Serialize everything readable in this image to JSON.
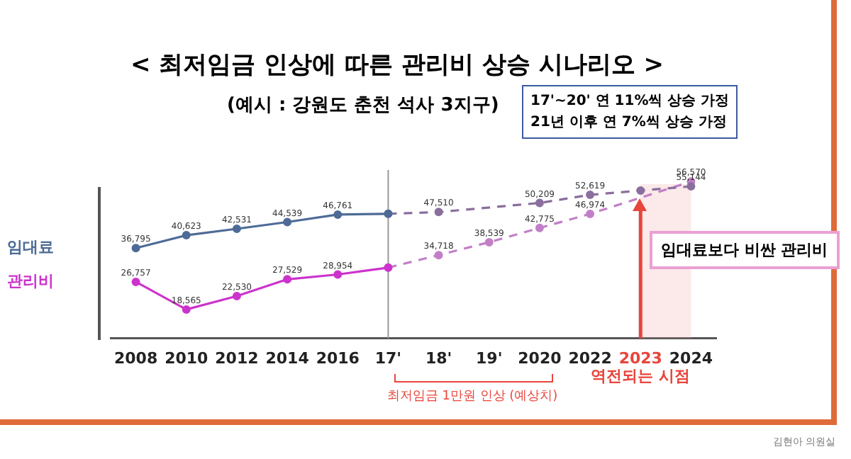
{
  "chart_data": {
    "type": "line",
    "title": "< 최저임금 인상에 따른 관리비 상승 시나리오 >",
    "subtitle": "(예시 : 강원도 춘천 석사 3지구)",
    "categories": [
      "2008",
      "2010",
      "2012",
      "2014",
      "2016",
      "17'",
      "18'",
      "19'",
      "2020",
      "2022",
      "2023",
      "2024"
    ],
    "series": [
      {
        "name": "임대료",
        "color": "#4d6b96",
        "line_style": "solid",
        "values": [
          36795,
          40623,
          42531,
          44539,
          46761,
          47000,
          null,
          null,
          null,
          null,
          null,
          null
        ],
        "value_labels": [
          "36,795",
          "40,623",
          "42,531",
          "44,539",
          "46,761",
          null,
          null,
          null,
          null,
          null,
          null,
          null
        ]
      },
      {
        "name": "관리비",
        "color": "#cc33cc",
        "line_style": "solid",
        "values": [
          26757,
          18565,
          22530,
          27529,
          28954,
          31000,
          null,
          null,
          null,
          null,
          null,
          null
        ],
        "value_labels": [
          "26,757",
          "18,565",
          "22,530",
          "27,529",
          "28,954",
          null,
          null,
          null,
          null,
          null,
          null,
          null
        ]
      },
      {
        "color": "#8a6f9e",
        "line_style": "dashed",
        "values": [
          null,
          null,
          null,
          null,
          null,
          47000,
          47510,
          null,
          50209,
          52619,
          53900,
          55144
        ],
        "value_labels": [
          null,
          null,
          null,
          null,
          null,
          null,
          "47,510",
          null,
          "50,209",
          "52,619",
          null,
          "55,144"
        ]
      },
      {
        "color": "#c27fc8",
        "line_style": "dashed",
        "values": [
          null,
          null,
          null,
          null,
          null,
          31000,
          34718,
          38539,
          42775,
          46974,
          null,
          56570
        ],
        "value_labels": [
          null,
          null,
          null,
          null,
          null,
          null,
          "34,718",
          "38,539",
          "42,775",
          "46,974",
          null,
          "56,570"
        ]
      }
    ],
    "marker": "circle",
    "grid": false,
    "legend": false,
    "tick_labels": "x",
    "ref_lines": [
      {
        "axis": "x",
        "value": "17'",
        "color": "#999999"
      },
      {
        "axis": "x",
        "value": "2023",
        "label": "역전되는 시점",
        "color": "#e8453c"
      }
    ],
    "bands": [
      {
        "axis": "x",
        "from": "2023",
        "to": "2024",
        "color": "#f2a8a8"
      }
    ],
    "annotations": [
      "17'~20' 연 11%씩 상승 가정\n21년 이후 연 7%씩 상승 가정",
      "임대료보다 비싼 관리비",
      "김현아 의원실",
      "최저임금 1만원 인상 (예상치)"
    ]
  }
}
